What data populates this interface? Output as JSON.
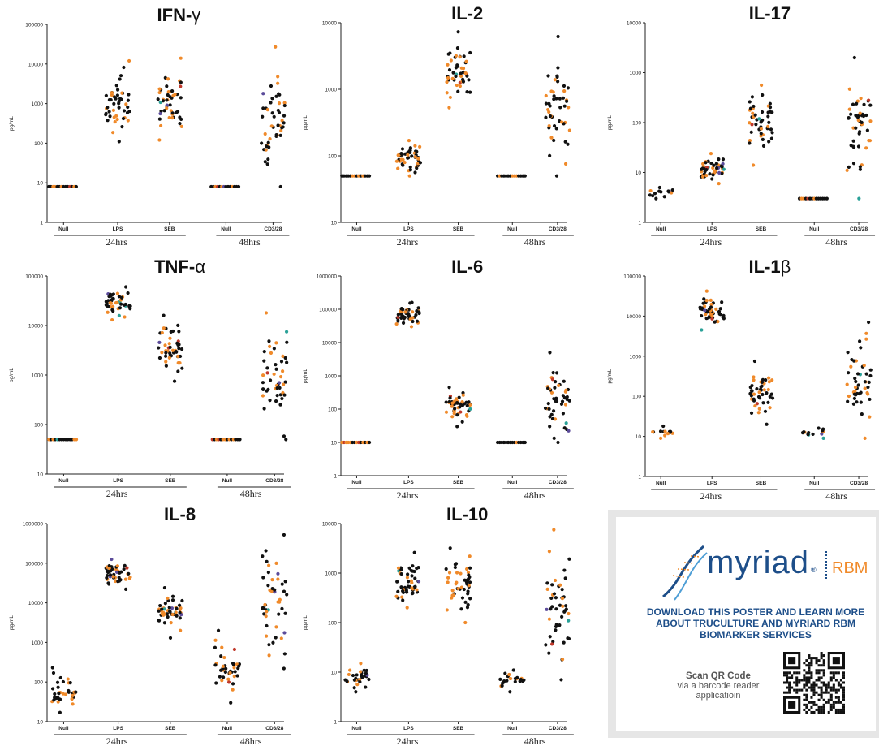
{
  "chart_data": [
    {
      "type": "scatter",
      "title": "IFN-",
      "title_symbol": "γ",
      "ylabel": "pg/mL",
      "yscale": "log",
      "ylim": [
        1,
        100000
      ],
      "ytick_labels": [
        "1",
        "10",
        "100",
        "1000",
        "10000",
        "100000"
      ],
      "categories": [
        "Null",
        "LPS",
        "SEB",
        "Null",
        "CD3/28"
      ],
      "groups": [
        "24hrs",
        "48hrs"
      ],
      "distributions": [
        {
          "category": "Null",
          "min": 8,
          "max": 8,
          "n": 14
        },
        {
          "category": "LPS",
          "min": 110,
          "max": 12000,
          "n": 48
        },
        {
          "category": "SEB",
          "min": 120,
          "max": 14000,
          "n": 48
        },
        {
          "category": "Null",
          "min": 8,
          "max": 8,
          "n": 14
        },
        {
          "category": "CD3/28",
          "min": 8,
          "max": 27000,
          "n": 48
        }
      ]
    },
    {
      "type": "scatter",
      "title": "IL-2",
      "title_symbol": "",
      "ylabel": "pg/mL",
      "yscale": "log",
      "ylim": [
        10,
        10000
      ],
      "ytick_labels": [
        "10",
        "100",
        "1000",
        "10000"
      ],
      "categories": [
        "Null",
        "LPS",
        "SEB",
        "Null",
        "CD3/28"
      ],
      "groups": [
        "24hrs",
        "48hrs"
      ],
      "distributions": [
        {
          "category": "Null",
          "min": 50,
          "max": 50,
          "n": 14
        },
        {
          "category": "LPS",
          "min": 50,
          "max": 170,
          "n": 48
        },
        {
          "category": "SEB",
          "min": 530,
          "max": 7300,
          "n": 48
        },
        {
          "category": "Null",
          "min": 50,
          "max": 50,
          "n": 14
        },
        {
          "category": "CD3/28",
          "min": 50,
          "max": 6200,
          "n": 48
        }
      ]
    },
    {
      "type": "scatter",
      "title": "IL-17",
      "title_symbol": "",
      "ylabel": "pg/mL",
      "yscale": "log",
      "ylim": [
        1,
        10000
      ],
      "ytick_labels": [
        "1",
        "10",
        "100",
        "1000",
        "10000"
      ],
      "categories": [
        "Null",
        "LPS",
        "SEB",
        "Null",
        "CD3/28"
      ],
      "groups": [
        "24hrs",
        "48hrs"
      ],
      "distributions": [
        {
          "category": "Null",
          "min": 3,
          "max": 5,
          "n": 14
        },
        {
          "category": "LPS",
          "min": 6,
          "max": 24,
          "n": 48
        },
        {
          "category": "SEB",
          "min": 14,
          "max": 560,
          "n": 48
        },
        {
          "category": "Null",
          "min": 3,
          "max": 3,
          "n": 14
        },
        {
          "category": "CD3/28",
          "min": 3,
          "max": 2000,
          "n": 48
        }
      ]
    },
    {
      "type": "scatter",
      "title": "TNF-",
      "title_symbol": "α",
      "ylabel": "pg/mL",
      "yscale": "log",
      "ylim": [
        10,
        100000
      ],
      "ytick_labels": [
        "10",
        "100",
        "1000",
        "10000",
        "100000"
      ],
      "categories": [
        "Null",
        "LPS",
        "SEB",
        "Null",
        "CD3/28"
      ],
      "groups": [
        "24hrs",
        "48hrs"
      ],
      "distributions": [
        {
          "category": "Null",
          "min": 50,
          "max": 50,
          "n": 14
        },
        {
          "category": "LPS",
          "min": 13000,
          "max": 60000,
          "n": 48
        },
        {
          "category": "SEB",
          "min": 750,
          "max": 16000,
          "n": 48
        },
        {
          "category": "Null",
          "min": 50,
          "max": 50,
          "n": 14
        },
        {
          "category": "CD3/28",
          "min": 50,
          "max": 18000,
          "n": 48
        }
      ]
    },
    {
      "type": "scatter",
      "title": "IL-6",
      "title_symbol": "",
      "ylabel": "pg/mL",
      "yscale": "log",
      "ylim": [
        1,
        1000000
      ],
      "ytick_labels": [
        "1",
        "10",
        "100",
        "1000",
        "10000",
        "100000",
        "1000000"
      ],
      "categories": [
        "Null",
        "LPS",
        "SEB",
        "Null",
        "CD3/28"
      ],
      "groups": [
        "24hrs",
        "48hrs"
      ],
      "distributions": [
        {
          "category": "Null",
          "min": 10,
          "max": 10,
          "n": 14
        },
        {
          "category": "LPS",
          "min": 30000,
          "max": 160000,
          "n": 48
        },
        {
          "category": "SEB",
          "min": 30,
          "max": 450,
          "n": 48
        },
        {
          "category": "Null",
          "min": 10,
          "max": 10,
          "n": 14
        },
        {
          "category": "CD3/28",
          "min": 10,
          "max": 5000,
          "n": 48
        }
      ]
    },
    {
      "type": "scatter",
      "title": "IL-1",
      "title_symbol": "β",
      "ylabel": "pg/mL",
      "yscale": "log",
      "ylim": [
        1,
        100000
      ],
      "ytick_labels": [
        "1",
        "10",
        "100",
        "1000",
        "10000",
        "100000"
      ],
      "categories": [
        "Null",
        "LPS",
        "SEB",
        "Null",
        "CD3/28"
      ],
      "groups": [
        "24hrs",
        "48hrs"
      ],
      "distributions": [
        {
          "category": "Null",
          "min": 9,
          "max": 18,
          "n": 14
        },
        {
          "category": "LPS",
          "min": 4500,
          "max": 42000,
          "n": 48
        },
        {
          "category": "SEB",
          "min": 20,
          "max": 750,
          "n": 48
        },
        {
          "category": "Null",
          "min": 9,
          "max": 16,
          "n": 14
        },
        {
          "category": "CD3/28",
          "min": 9,
          "max": 7000,
          "n": 48
        }
      ]
    },
    {
      "type": "scatter",
      "title": "IL-8",
      "title_symbol": "",
      "ylabel": "pg/mL",
      "yscale": "log",
      "ylim": [
        10,
        1000000
      ],
      "ytick_labels": [
        "10",
        "100",
        "1000",
        "10000",
        "100000",
        "1000000"
      ],
      "categories": [
        "Null",
        "LPS",
        "SEB",
        "Null",
        "CD3/28"
      ],
      "groups": [
        "24hrs",
        "48hrs"
      ],
      "distributions": [
        {
          "category": "Null",
          "min": 17,
          "max": 230,
          "n": 36
        },
        {
          "category": "LPS",
          "min": 22000,
          "max": 125000,
          "n": 48
        },
        {
          "category": "SEB",
          "min": 1300,
          "max": 24000,
          "n": 48
        },
        {
          "category": "Null",
          "min": 30,
          "max": 2000,
          "n": 40
        },
        {
          "category": "CD3/28",
          "min": 220,
          "max": 520000,
          "n": 48
        }
      ]
    },
    {
      "type": "scatter",
      "title": "IL-10",
      "title_symbol": "",
      "ylabel": "pg/mL",
      "yscale": "log",
      "ylim": [
        1,
        10000
      ],
      "ytick_labels": [
        "1",
        "10",
        "100",
        "1000",
        "10000"
      ],
      "categories": [
        "Null",
        "LPS",
        "SEB",
        "Null",
        "CD3/28"
      ],
      "groups": [
        "24hrs",
        "48hrs"
      ],
      "distributions": [
        {
          "category": "Null",
          "min": 4,
          "max": 15,
          "n": 30
        },
        {
          "category": "LPS",
          "min": 200,
          "max": 2600,
          "n": 48
        },
        {
          "category": "SEB",
          "min": 100,
          "max": 3200,
          "n": 48
        },
        {
          "category": "Null",
          "min": 4,
          "max": 11,
          "n": 24
        },
        {
          "category": "CD3/28",
          "min": 7,
          "max": 7500,
          "n": 48
        }
      ]
    }
  ],
  "colors": {
    "primary_dots": "#111111",
    "accent_dots": "#f08a2a",
    "other_dots": [
      "#5b4b9a",
      "#2aa198",
      "#c0392b"
    ],
    "brand_blue": "#1d4e89",
    "brand_orange": "#f08a2a"
  },
  "ad": {
    "logo_word": "myriad",
    "logo_reg": "®",
    "logo_suffix": "RBM",
    "cta": "DOWNLOAD THIS POSTER AND LEARN MORE ABOUT TRUCULTURE AND MYRIARD RBM BIOMARKER SERVICES",
    "scan_title": "Scan QR Code",
    "scan_sub": "via a barcode reader applicatioin"
  }
}
